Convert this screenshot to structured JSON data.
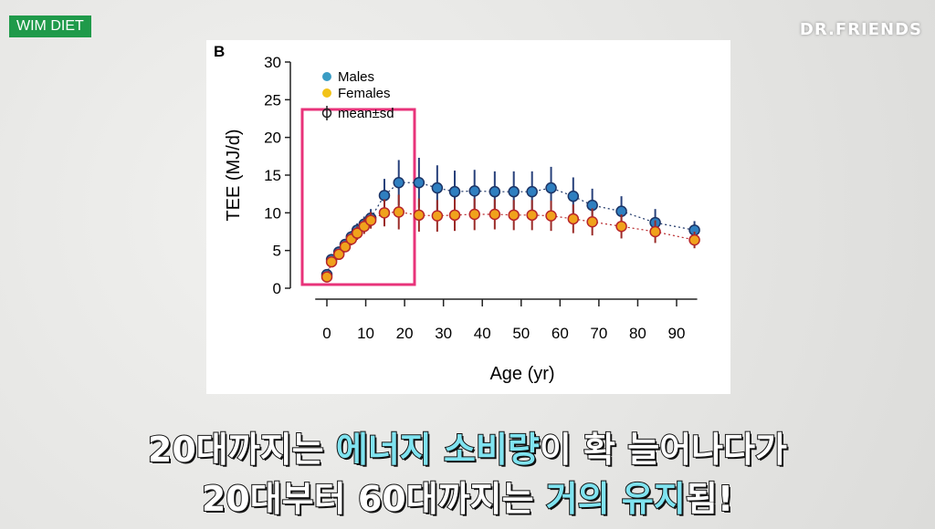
{
  "badge": "WIM DIET",
  "brand": "DR.FRIENDS",
  "subtitle": {
    "lines": [
      [
        "20대까지는 ",
        "에너지 소비량",
        "이 확 늘어나다가"
      ],
      [
        "20대부터 60대까지는 ",
        "거의 유지",
        "됨!"
      ]
    ]
  },
  "chart_data": {
    "type": "scatter",
    "panel_label": "B",
    "x_label": "Age (yr)",
    "y_label": "TEE (MJ/d)",
    "xlim": [
      -3,
      100
    ],
    "ylim": [
      0,
      30
    ],
    "xticks": [
      0,
      10,
      20,
      30,
      40,
      50,
      60,
      70,
      80,
      90
    ],
    "yticks": [
      0,
      5,
      10,
      15,
      20,
      25,
      30
    ],
    "legend_extra": "mean±sd",
    "x": [
      0,
      1.2,
      3.1,
      4.7,
      6.3,
      7.8,
      9.6,
      11.3,
      14.8,
      18.5,
      23.7,
      28.4,
      32.9,
      38,
      43.2,
      48.1,
      52.8,
      57.7,
      63.4,
      68.3,
      75.8,
      84.5,
      94.6
    ],
    "series": [
      {
        "name": "Males",
        "color": "#3a9cc4",
        "marker_color": "#2f7fc0",
        "edge_color": "#1c3466",
        "bar_color": "#27407a",
        "values": [
          1.8,
          3.8,
          4.8,
          5.8,
          6.8,
          7.7,
          8.5,
          9.3,
          12.3,
          14.0,
          14.0,
          13.3,
          12.8,
          12.9,
          12.8,
          12.8,
          12.8,
          13.3,
          12.2,
          11.0,
          10.2,
          8.7,
          7.7
        ],
        "errors": [
          0.3,
          0.5,
          0.6,
          0.7,
          0.8,
          0.9,
          1.0,
          1.2,
          2.2,
          3.0,
          3.3,
          3.0,
          2.8,
          2.8,
          2.7,
          2.7,
          2.7,
          2.8,
          2.5,
          2.2,
          2.0,
          1.8,
          1.2
        ]
      },
      {
        "name": "Females",
        "color": "#f2c318",
        "marker_color": "#f0a21c",
        "edge_color": "#b8262a",
        "bar_color": "#9a2b28",
        "values": [
          1.5,
          3.5,
          4.5,
          5.5,
          6.5,
          7.3,
          8.2,
          9.0,
          10.0,
          10.1,
          9.7,
          9.6,
          9.7,
          9.8,
          9.8,
          9.7,
          9.7,
          9.6,
          9.2,
          8.8,
          8.2,
          7.5,
          6.4
        ],
        "errors": [
          0.3,
          0.5,
          0.6,
          0.7,
          0.8,
          0.9,
          1.0,
          1.1,
          1.8,
          2.3,
          2.2,
          2.1,
          2.1,
          2.1,
          2.0,
          2.0,
          2.0,
          2.0,
          1.9,
          1.8,
          1.6,
          1.5,
          1.1
        ]
      }
    ]
  }
}
